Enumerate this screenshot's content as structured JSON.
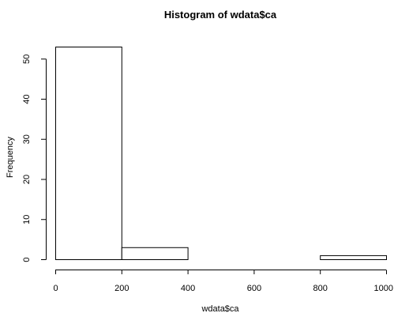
{
  "chart_data": {
    "type": "bar",
    "title": "Histogram of wdata$ca",
    "xlabel": "wdata$ca",
    "ylabel": "Frequency",
    "bins": [
      {
        "start": 0,
        "end": 200,
        "count": 53
      },
      {
        "start": 200,
        "end": 400,
        "count": 3
      },
      {
        "start": 400,
        "end": 600,
        "count": 0
      },
      {
        "start": 600,
        "end": 800,
        "count": 0
      },
      {
        "start": 800,
        "end": 1000,
        "count": 1
      }
    ],
    "xlim": [
      0,
      1000
    ],
    "ylim": [
      0,
      53
    ],
    "xticks": [
      0,
      200,
      400,
      600,
      800,
      1000
    ],
    "xtick_labels": [
      "0",
      "200",
      "400",
      "600",
      "800",
      "1000"
    ],
    "yticks": [
      0,
      10,
      20,
      30,
      40,
      50
    ],
    "ytick_labels": [
      "0",
      "10",
      "20",
      "30",
      "40",
      "50"
    ],
    "grid": false,
    "colors": {
      "bar_fill": "#ffffff",
      "bar_stroke": "#000000",
      "text": "#000000"
    }
  }
}
